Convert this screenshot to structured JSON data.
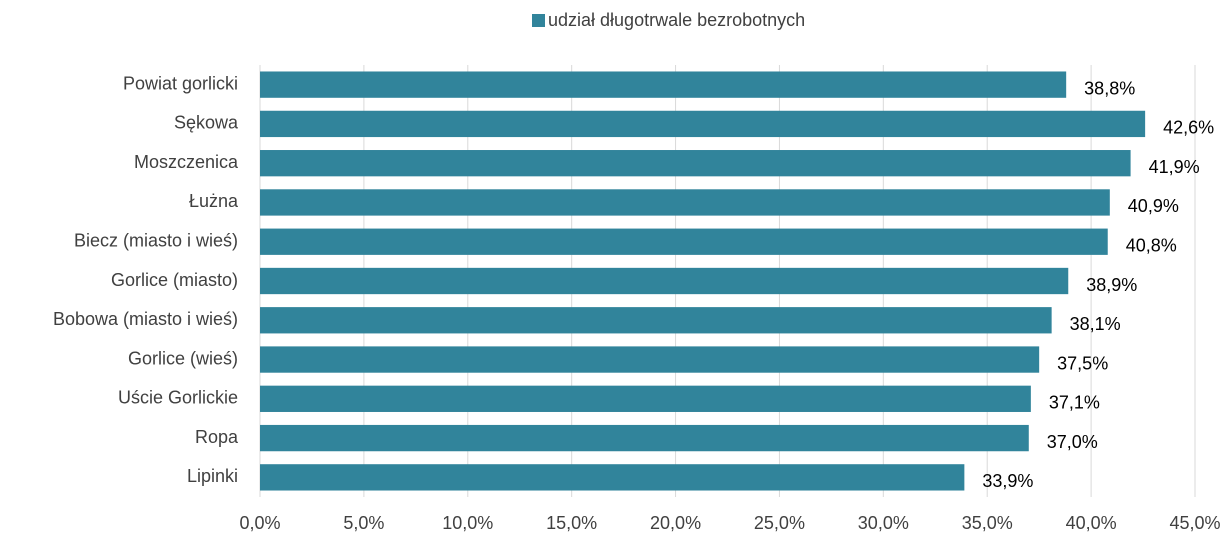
{
  "chart_data": {
    "type": "barh",
    "legend": "top",
    "grid": true,
    "series": [
      {
        "name": "udział długotrwale bezrobotnych",
        "color": "#31849b",
        "values": [
          38.8,
          42.6,
          41.9,
          40.9,
          40.8,
          38.9,
          38.1,
          37.5,
          37.1,
          37.0,
          33.9
        ],
        "value_labels": [
          "38,8%",
          "42,6%",
          "41,9%",
          "40,9%",
          "40,8%",
          "38,9%",
          "38,1%",
          "37,5%",
          "37,1%",
          "37,0%",
          "33,9%"
        ]
      }
    ],
    "categories": [
      "Powiat gorlicki",
      "Sękowa",
      "Moszczenica",
      "Łużna",
      "Biecz (miasto i wieś)",
      "Gorlice (miasto)",
      "Bobowa (miasto i wieś)",
      "Gorlice (wieś)",
      "Uście Gorlickie",
      "Ropa",
      "Lipinki"
    ],
    "xlim": [
      0,
      45
    ],
    "xticks": [
      {
        "value": 0,
        "label": "0,0%"
      },
      {
        "value": 5,
        "label": "5,0%"
      },
      {
        "value": 10,
        "label": "10,0%"
      },
      {
        "value": 15,
        "label": "15,0%"
      },
      {
        "value": 20,
        "label": "20,0%"
      },
      {
        "value": 25,
        "label": "25,0%"
      },
      {
        "value": 30,
        "label": "30,0%"
      },
      {
        "value": 35,
        "label": "35,0%"
      },
      {
        "value": 40,
        "label": "40,0%"
      },
      {
        "value": 45,
        "label": "45,0%"
      }
    ]
  }
}
